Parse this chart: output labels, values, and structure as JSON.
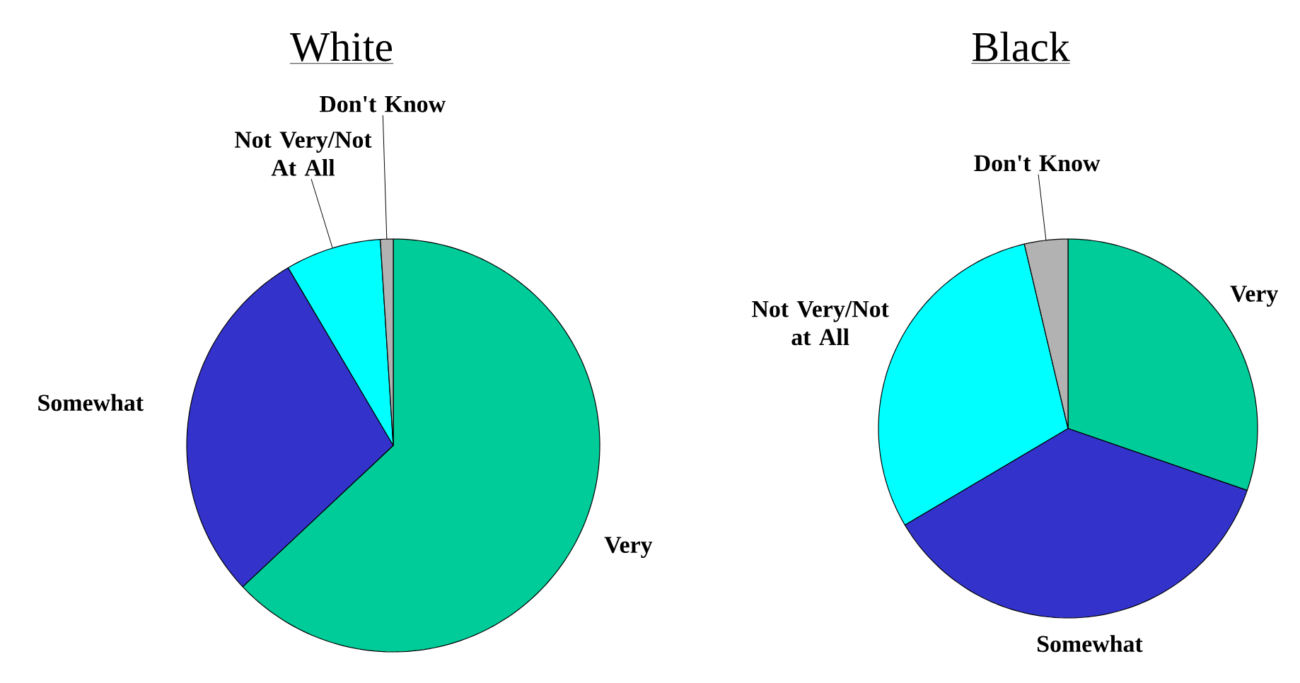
{
  "chart_data": [
    {
      "type": "pie",
      "title": "White",
      "categories": [
        "Very",
        "Somewhat",
        "Not Very/Not At All",
        "Don't Know"
      ],
      "values": [
        63,
        28.5,
        7.5,
        1
      ],
      "colors": [
        "#00cc99",
        "#3333cc",
        "#00ffff",
        "#b2b2b2"
      ]
    },
    {
      "type": "pie",
      "title": "Black",
      "categories": [
        "Very",
        "Somewhat",
        "Not Very/Not at All",
        "Don't Know"
      ],
      "values": [
        30.3,
        36.2,
        29.8,
        3.7
      ],
      "colors": [
        "#00cc99",
        "#3333cc",
        "#00ffff",
        "#b2b2b2"
      ]
    }
  ]
}
